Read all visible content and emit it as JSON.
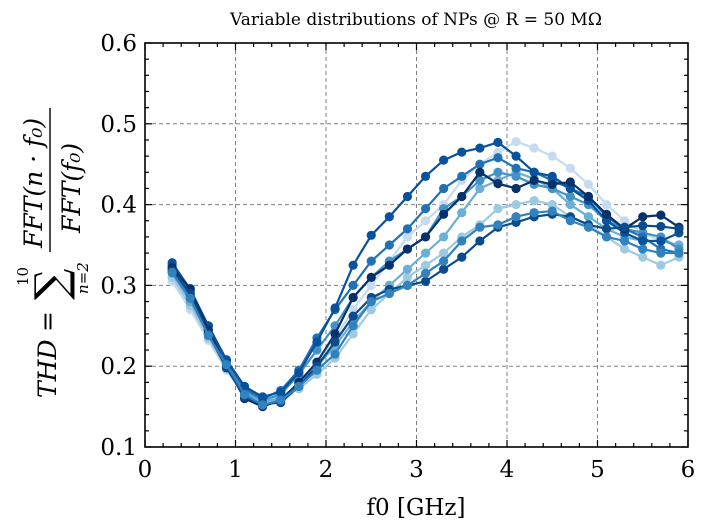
{
  "chart_data": {
    "type": "line",
    "title": "Variable distributions of NPs @ R = 50 MΩ",
    "xlabel": "f0 [GHz]",
    "ylabel": "THD = Σ_{n=2}^{10} FFT(n·f0)/FFT(f0)",
    "xlim": [
      0,
      6
    ],
    "ylim": [
      0.1,
      0.6
    ],
    "xticks": [
      0,
      1,
      2,
      3,
      4,
      5,
      6
    ],
    "yticks": [
      0.1,
      0.2,
      0.3,
      0.4,
      0.5,
      0.6
    ],
    "grid": true,
    "x": [
      0.3,
      0.5,
      0.7,
      0.9,
      1.1,
      1.3,
      1.5,
      1.7,
      1.9,
      2.1,
      2.3,
      2.5,
      2.7,
      2.9,
      3.1,
      3.3,
      3.5,
      3.7,
      3.9,
      4.1,
      4.3,
      4.5,
      4.7,
      4.9,
      5.1,
      5.3,
      5.5,
      5.7,
      5.9
    ],
    "series": [
      {
        "color": "#c6dbef",
        "values": [
          0.305,
          0.27,
          0.232,
          0.195,
          0.165,
          0.152,
          0.16,
          0.175,
          0.2,
          0.235,
          0.27,
          0.3,
          0.33,
          0.36,
          0.38,
          0.4,
          0.43,
          0.45,
          0.465,
          0.478,
          0.47,
          0.46,
          0.445,
          0.425,
          0.4,
          0.38,
          0.365,
          0.355,
          0.35
        ]
      },
      {
        "color": "#9ecae1",
        "values": [
          0.31,
          0.275,
          0.235,
          0.197,
          0.166,
          0.155,
          0.163,
          0.172,
          0.19,
          0.21,
          0.24,
          0.27,
          0.29,
          0.31,
          0.325,
          0.34,
          0.36,
          0.375,
          0.395,
          0.4,
          0.405,
          0.4,
          0.385,
          0.375,
          0.36,
          0.345,
          0.335,
          0.325,
          0.335
        ]
      },
      {
        "color": "#6baed6",
        "values": [
          0.315,
          0.28,
          0.24,
          0.2,
          0.168,
          0.156,
          0.16,
          0.178,
          0.2,
          0.225,
          0.255,
          0.28,
          0.3,
          0.32,
          0.34,
          0.36,
          0.39,
          0.42,
          0.43,
          0.44,
          0.432,
          0.42,
          0.4,
          0.385,
          0.37,
          0.36,
          0.355,
          0.355,
          0.35
        ]
      },
      {
        "color": "#4292c6",
        "values": [
          0.32,
          0.288,
          0.245,
          0.205,
          0.17,
          0.158,
          0.165,
          0.19,
          0.22,
          0.25,
          0.285,
          0.31,
          0.33,
          0.345,
          0.36,
          0.395,
          0.41,
          0.43,
          0.44,
          0.435,
          0.425,
          0.42,
          0.41,
          0.4,
          0.38,
          0.37,
          0.365,
          0.36,
          0.345
        ]
      },
      {
        "color": "#2171b5",
        "values": [
          0.325,
          0.292,
          0.25,
          0.207,
          0.172,
          0.16,
          0.17,
          0.195,
          0.235,
          0.27,
          0.3,
          0.33,
          0.35,
          0.37,
          0.395,
          0.42,
          0.435,
          0.45,
          0.458,
          0.445,
          0.44,
          0.43,
          0.42,
          0.41,
          0.385,
          0.37,
          0.36,
          0.345,
          0.34
        ]
      },
      {
        "color": "#08519c",
        "values": [
          0.328,
          0.295,
          0.25,
          0.208,
          0.175,
          0.162,
          0.168,
          0.192,
          0.23,
          0.272,
          0.325,
          0.362,
          0.385,
          0.41,
          0.435,
          0.455,
          0.465,
          0.47,
          0.477,
          0.46,
          0.44,
          0.435,
          0.42,
          0.405,
          0.38,
          0.365,
          0.355,
          0.355,
          0.365
        ]
      },
      {
        "color": "#08306b",
        "values": [
          0.322,
          0.296,
          0.245,
          0.2,
          0.16,
          0.15,
          0.158,
          0.18,
          0.205,
          0.24,
          0.285,
          0.31,
          0.325,
          0.345,
          0.36,
          0.388,
          0.41,
          0.44,
          0.426,
          0.42,
          0.43,
          0.425,
          0.428,
          0.41,
          0.388,
          0.37,
          0.385,
          0.387,
          0.372
        ]
      },
      {
        "color": "#0b4b8c",
        "values": [
          0.318,
          0.29,
          0.24,
          0.198,
          0.162,
          0.153,
          0.155,
          0.175,
          0.2,
          0.23,
          0.262,
          0.285,
          0.295,
          0.3,
          0.305,
          0.32,
          0.335,
          0.355,
          0.372,
          0.378,
          0.385,
          0.388,
          0.385,
          0.375,
          0.37,
          0.372,
          0.374,
          0.373,
          0.37
        ]
      },
      {
        "color": "#3182bd",
        "values": [
          0.316,
          0.284,
          0.238,
          0.202,
          0.165,
          0.152,
          0.158,
          0.175,
          0.195,
          0.215,
          0.25,
          0.28,
          0.29,
          0.3,
          0.315,
          0.33,
          0.355,
          0.372,
          0.375,
          0.385,
          0.39,
          0.392,
          0.38,
          0.372,
          0.36,
          0.355,
          0.345,
          0.34,
          0.34
        ]
      }
    ]
  }
}
